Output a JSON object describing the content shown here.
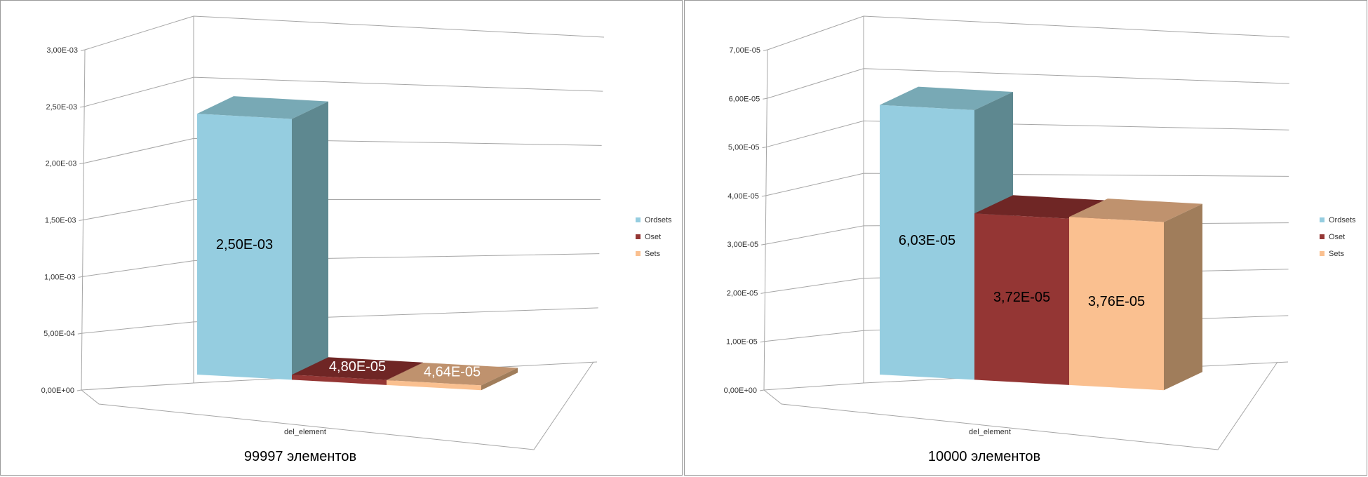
{
  "chart_data": [
    {
      "type": "bar",
      "categories": [
        "del_element"
      ],
      "series": [
        {
          "name": "Ordsets",
          "values": [
            0.0025
          ],
          "label": "2,50E-03"
        },
        {
          "name": "Oset",
          "values": [
            4.8e-05
          ],
          "label": "4,80E-05"
        },
        {
          "name": "Sets",
          "values": [
            4.64e-05
          ],
          "label": "4,64E-05"
        }
      ],
      "y_ticks": [
        "0,00E+00",
        "5,00E-04",
        "1,00E-03",
        "1,50E-03",
        "2,00E-03",
        "2,50E-03",
        "3,00E-03"
      ],
      "ylim": [
        0,
        0.003
      ],
      "xlabel": "99997 элементов",
      "grid": true,
      "legend": "right",
      "three_d": true
    },
    {
      "type": "bar",
      "categories": [
        "del_element"
      ],
      "series": [
        {
          "name": "Ordsets",
          "values": [
            6.03e-05
          ],
          "label": "6,03E-05"
        },
        {
          "name": "Oset",
          "values": [
            3.72e-05
          ],
          "label": "3,72E-05"
        },
        {
          "name": "Sets",
          "values": [
            3.76e-05
          ],
          "label": "3,76E-05"
        }
      ],
      "y_ticks": [
        "0,00E+00",
        "1,00E-05",
        "2,00E-05",
        "3,00E-05",
        "4,00E-05",
        "5,00E-05",
        "6,00E-05",
        "7,00E-05"
      ],
      "ylim": [
        0,
        7e-05
      ],
      "xlabel": "10000 элементов",
      "grid": true,
      "legend": "right",
      "three_d": true
    }
  ],
  "colors": {
    "Ordsets": {
      "front": "#95cde0",
      "top": "#78a9b5",
      "side": "#5e8890"
    },
    "Oset": {
      "front": "#943634",
      "top": "#6f2625",
      "side": "#7d2d2c"
    },
    "Sets": {
      "front": "#fac090",
      "top": "#bf926e",
      "side": "#a07d5b"
    },
    "grid": "#a6a6a6"
  }
}
